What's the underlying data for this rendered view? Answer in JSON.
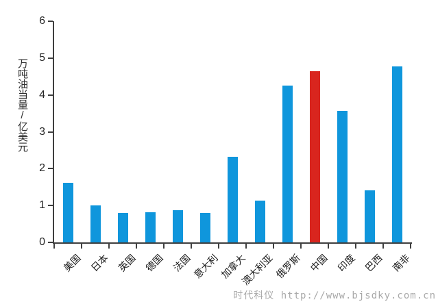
{
  "chart_data": {
    "type": "bar",
    "categories": [
      "美国",
      "日本",
      "英国",
      "德国",
      "法国",
      "意大利",
      "加拿大",
      "澳大利亚",
      "俄罗斯",
      "中国",
      "印度",
      "巴西",
      "南非"
    ],
    "values": [
      1.62,
      1.0,
      0.8,
      0.82,
      0.87,
      0.79,
      2.33,
      1.14,
      4.25,
      4.64,
      3.56,
      1.41,
      4.77
    ],
    "highlight_index": 9,
    "highlight_category": "中国",
    "bar_color": "#0f96dc",
    "highlight_color": "#d9251e",
    "axis_color": "#3f3f3f",
    "title": "",
    "xlabel": "",
    "ylabel": "万吨油当量/亿美元",
    "ylim": [
      0,
      6
    ],
    "yticks": [
      0,
      1,
      2,
      3,
      4,
      5,
      6
    ],
    "grid": false,
    "legend": "none"
  },
  "watermark": {
    "text": "时代科仪 http://www.bjsdky.com.cn",
    "color": "#a9a9a9"
  }
}
